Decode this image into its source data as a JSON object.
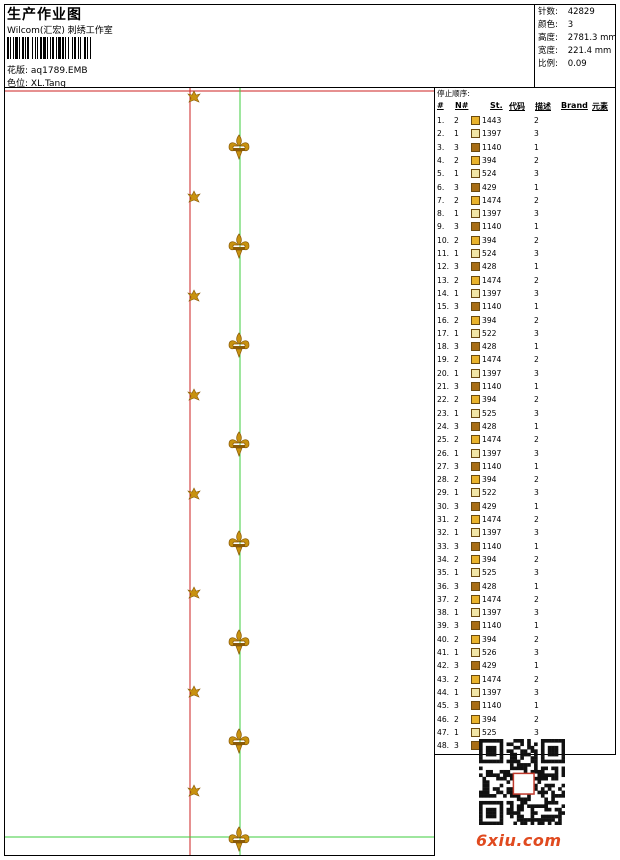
{
  "header": {
    "title": "生产作业图",
    "company": "Wilcom(汇宏) 刺绣工作室",
    "design_label": "花版:",
    "design_value": "aq1789.EMB",
    "colorway_label": "色位:",
    "colorway_value": "XL.Tang"
  },
  "stats": [
    {
      "label": "针数:",
      "value": "42829"
    },
    {
      "label": "颜色:",
      "value": "3"
    },
    {
      "label": "高度:",
      "value": "2781.3 mm"
    },
    {
      "label": "宽度:",
      "value": "221.4 mm"
    },
    {
      "label": "比例:",
      "value": "0.09"
    }
  ],
  "stop_sequence": {
    "caption": "停止顺序:",
    "columns": [
      "#",
      "N#",
      "St.",
      "代码",
      "描述",
      "Brand",
      "元素"
    ],
    "rows": [
      {
        "i": "1.",
        "n": "2",
        "st": "1443",
        "code": "2"
      },
      {
        "i": "2.",
        "n": "1",
        "st": "1397",
        "code": "3"
      },
      {
        "i": "3.",
        "n": "3",
        "st": "1140",
        "code": "1"
      },
      {
        "i": "4.",
        "n": "2",
        "st": "394",
        "code": "2"
      },
      {
        "i": "5.",
        "n": "1",
        "st": "524",
        "code": "3"
      },
      {
        "i": "6.",
        "n": "3",
        "st": "429",
        "code": "1"
      },
      {
        "i": "7.",
        "n": "2",
        "st": "1474",
        "code": "2"
      },
      {
        "i": "8.",
        "n": "1",
        "st": "1397",
        "code": "3"
      },
      {
        "i": "9.",
        "n": "3",
        "st": "1140",
        "code": "1"
      },
      {
        "i": "10.",
        "n": "2",
        "st": "394",
        "code": "2"
      },
      {
        "i": "11.",
        "n": "1",
        "st": "524",
        "code": "3"
      },
      {
        "i": "12.",
        "n": "3",
        "st": "428",
        "code": "1"
      },
      {
        "i": "13.",
        "n": "2",
        "st": "1474",
        "code": "2"
      },
      {
        "i": "14.",
        "n": "1",
        "st": "1397",
        "code": "3"
      },
      {
        "i": "15.",
        "n": "3",
        "st": "1140",
        "code": "1"
      },
      {
        "i": "16.",
        "n": "2",
        "st": "394",
        "code": "2"
      },
      {
        "i": "17.",
        "n": "1",
        "st": "522",
        "code": "3"
      },
      {
        "i": "18.",
        "n": "3",
        "st": "428",
        "code": "1"
      },
      {
        "i": "19.",
        "n": "2",
        "st": "1474",
        "code": "2"
      },
      {
        "i": "20.",
        "n": "1",
        "st": "1397",
        "code": "3"
      },
      {
        "i": "21.",
        "n": "3",
        "st": "1140",
        "code": "1"
      },
      {
        "i": "22.",
        "n": "2",
        "st": "394",
        "code": "2"
      },
      {
        "i": "23.",
        "n": "1",
        "st": "525",
        "code": "3"
      },
      {
        "i": "24.",
        "n": "3",
        "st": "428",
        "code": "1"
      },
      {
        "i": "25.",
        "n": "2",
        "st": "1474",
        "code": "2"
      },
      {
        "i": "26.",
        "n": "1",
        "st": "1397",
        "code": "3"
      },
      {
        "i": "27.",
        "n": "3",
        "st": "1140",
        "code": "1"
      },
      {
        "i": "28.",
        "n": "2",
        "st": "394",
        "code": "2"
      },
      {
        "i": "29.",
        "n": "1",
        "st": "522",
        "code": "3"
      },
      {
        "i": "30.",
        "n": "3",
        "st": "429",
        "code": "1"
      },
      {
        "i": "31.",
        "n": "2",
        "st": "1474",
        "code": "2"
      },
      {
        "i": "32.",
        "n": "1",
        "st": "1397",
        "code": "3"
      },
      {
        "i": "33.",
        "n": "3",
        "st": "1140",
        "code": "1"
      },
      {
        "i": "34.",
        "n": "2",
        "st": "394",
        "code": "2"
      },
      {
        "i": "35.",
        "n": "1",
        "st": "525",
        "code": "3"
      },
      {
        "i": "36.",
        "n": "3",
        "st": "428",
        "code": "1"
      },
      {
        "i": "37.",
        "n": "2",
        "st": "1474",
        "code": "2"
      },
      {
        "i": "38.",
        "n": "1",
        "st": "1397",
        "code": "3"
      },
      {
        "i": "39.",
        "n": "3",
        "st": "1140",
        "code": "1"
      },
      {
        "i": "40.",
        "n": "2",
        "st": "394",
        "code": "2"
      },
      {
        "i": "41.",
        "n": "1",
        "st": "526",
        "code": "3"
      },
      {
        "i": "42.",
        "n": "3",
        "st": "429",
        "code": "1"
      },
      {
        "i": "43.",
        "n": "2",
        "st": "1474",
        "code": "2"
      },
      {
        "i": "44.",
        "n": "1",
        "st": "1397",
        "code": "3"
      },
      {
        "i": "45.",
        "n": "3",
        "st": "1140",
        "code": "1"
      },
      {
        "i": "46.",
        "n": "2",
        "st": "394",
        "code": "2"
      },
      {
        "i": "47.",
        "n": "1",
        "st": "525",
        "code": "3"
      },
      {
        "i": "48.",
        "n": "3",
        "st": "",
        "code": ""
      }
    ]
  },
  "thread_colors": {
    "1": "#f2e6a6",
    "2": "#e9b32c",
    "3": "#a86d14"
  },
  "canvas_colors": {
    "guide_red": "#cc2222",
    "guide_green": "#3dcc3d",
    "motif": "#c8920f",
    "motif_dark": "#8a5a08"
  },
  "watermark": "6xiu.com"
}
